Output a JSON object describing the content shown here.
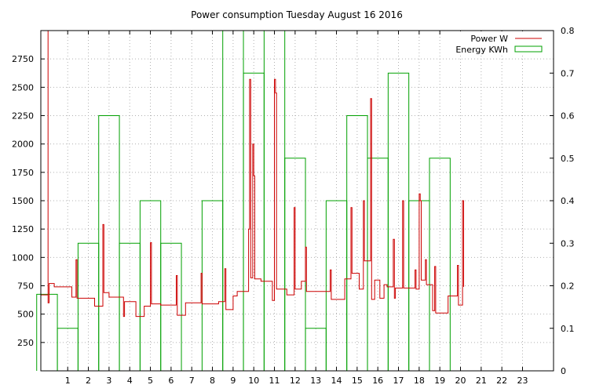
{
  "chart_data": {
    "type": "line",
    "title": "Power consumption Tuesday August 16 2016",
    "xlim": [
      -0.3,
      24.5
    ],
    "x_ticks": [
      1,
      2,
      3,
      4,
      5,
      6,
      7,
      8,
      9,
      10,
      11,
      12,
      13,
      14,
      15,
      16,
      17,
      18,
      19,
      20,
      21,
      22,
      23
    ],
    "y_left": {
      "lim": [
        0,
        3000
      ],
      "ticks": [
        250,
        500,
        750,
        1000,
        1250,
        1500,
        1750,
        2000,
        2250,
        2500,
        2750
      ]
    },
    "y_right": {
      "lim": [
        0,
        0.8
      ],
      "ticks": [
        0,
        0.1,
        0.2,
        0.3,
        0.4,
        0.5,
        0.6,
        0.7,
        0.8
      ]
    },
    "grid": true,
    "legend_position": "top-right",
    "series": [
      {
        "name": "Power W",
        "axis": "left",
        "color": "#cc0000",
        "kind": "line",
        "points": [
          [
            -0.3,
            670
          ],
          [
            0.05,
            670
          ],
          [
            0.05,
            3000
          ],
          [
            0.05,
            600
          ],
          [
            0.1,
            600
          ],
          [
            0.1,
            770
          ],
          [
            0.35,
            770
          ],
          [
            0.35,
            740
          ],
          [
            1.2,
            740
          ],
          [
            1.2,
            650
          ],
          [
            1.4,
            650
          ],
          [
            1.4,
            980
          ],
          [
            1.45,
            980
          ],
          [
            1.45,
            640
          ],
          [
            2.3,
            640
          ],
          [
            2.3,
            570
          ],
          [
            2.7,
            570
          ],
          [
            2.7,
            1290
          ],
          [
            2.75,
            1290
          ],
          [
            2.75,
            690
          ],
          [
            3.0,
            690
          ],
          [
            3.0,
            650
          ],
          [
            3.7,
            650
          ],
          [
            3.7,
            480
          ],
          [
            3.75,
            480
          ],
          [
            3.75,
            610
          ],
          [
            4.3,
            610
          ],
          [
            4.3,
            480
          ],
          [
            4.7,
            480
          ],
          [
            4.7,
            570
          ],
          [
            5.0,
            570
          ],
          [
            5.0,
            1130
          ],
          [
            5.05,
            1130
          ],
          [
            5.05,
            590
          ],
          [
            5.5,
            590
          ],
          [
            5.5,
            580
          ],
          [
            6.25,
            580
          ],
          [
            6.25,
            840
          ],
          [
            6.3,
            840
          ],
          [
            6.3,
            490
          ],
          [
            6.7,
            490
          ],
          [
            6.7,
            600
          ],
          [
            7.45,
            600
          ],
          [
            7.45,
            860
          ],
          [
            7.5,
            860
          ],
          [
            7.5,
            590
          ],
          [
            8.3,
            590
          ],
          [
            8.3,
            610
          ],
          [
            8.6,
            610
          ],
          [
            8.6,
            900
          ],
          [
            8.65,
            900
          ],
          [
            8.65,
            540
          ],
          [
            9.0,
            540
          ],
          [
            9.0,
            660
          ],
          [
            9.2,
            660
          ],
          [
            9.2,
            700
          ],
          [
            9.75,
            700
          ],
          [
            9.75,
            1250
          ],
          [
            9.8,
            1250
          ],
          [
            9.8,
            2570
          ],
          [
            9.85,
            2570
          ],
          [
            9.85,
            820
          ],
          [
            9.95,
            820
          ],
          [
            9.95,
            2000
          ],
          [
            10.0,
            2000
          ],
          [
            10.0,
            1720
          ],
          [
            10.05,
            1720
          ],
          [
            10.05,
            810
          ],
          [
            10.35,
            810
          ],
          [
            10.35,
            790
          ],
          [
            10.9,
            790
          ],
          [
            10.9,
            620
          ],
          [
            11.0,
            620
          ],
          [
            11.0,
            2570
          ],
          [
            11.05,
            2570
          ],
          [
            11.05,
            2450
          ],
          [
            11.1,
            2450
          ],
          [
            11.1,
            720
          ],
          [
            11.6,
            720
          ],
          [
            11.6,
            670
          ],
          [
            11.95,
            670
          ],
          [
            11.95,
            1440
          ],
          [
            12.0,
            1440
          ],
          [
            12.0,
            720
          ],
          [
            12.3,
            720
          ],
          [
            12.3,
            790
          ],
          [
            12.5,
            790
          ],
          [
            12.5,
            1090
          ],
          [
            12.55,
            1090
          ],
          [
            12.55,
            700
          ],
          [
            13.7,
            700
          ],
          [
            13.7,
            890
          ],
          [
            13.75,
            890
          ],
          [
            13.75,
            630
          ],
          [
            14.4,
            630
          ],
          [
            14.4,
            810
          ],
          [
            14.7,
            810
          ],
          [
            14.7,
            1440
          ],
          [
            14.75,
            1440
          ],
          [
            14.75,
            860
          ],
          [
            15.1,
            860
          ],
          [
            15.1,
            720
          ],
          [
            15.3,
            720
          ],
          [
            15.3,
            1500
          ],
          [
            15.35,
            1500
          ],
          [
            15.35,
            970
          ],
          [
            15.65,
            970
          ],
          [
            15.65,
            2400
          ],
          [
            15.7,
            2400
          ],
          [
            15.7,
            630
          ],
          [
            15.85,
            630
          ],
          [
            15.85,
            800
          ],
          [
            16.1,
            800
          ],
          [
            16.1,
            640
          ],
          [
            16.3,
            640
          ],
          [
            16.3,
            760
          ],
          [
            16.45,
            760
          ],
          [
            16.45,
            740
          ],
          [
            16.75,
            740
          ],
          [
            16.75,
            1160
          ],
          [
            16.8,
            1160
          ],
          [
            16.8,
            640
          ],
          [
            16.85,
            640
          ],
          [
            16.85,
            730
          ],
          [
            17.2,
            730
          ],
          [
            17.2,
            1500
          ],
          [
            17.25,
            1500
          ],
          [
            17.25,
            730
          ],
          [
            17.8,
            730
          ],
          [
            17.8,
            890
          ],
          [
            17.85,
            890
          ],
          [
            17.85,
            720
          ],
          [
            18.0,
            720
          ],
          [
            18.0,
            1560
          ],
          [
            18.05,
            1560
          ],
          [
            18.05,
            1500
          ],
          [
            18.1,
            1500
          ],
          [
            18.1,
            800
          ],
          [
            18.3,
            800
          ],
          [
            18.3,
            980
          ],
          [
            18.35,
            980
          ],
          [
            18.35,
            760
          ],
          [
            18.65,
            760
          ],
          [
            18.65,
            530
          ],
          [
            18.75,
            530
          ],
          [
            18.75,
            920
          ],
          [
            18.8,
            920
          ],
          [
            18.8,
            510
          ],
          [
            19.4,
            510
          ],
          [
            19.4,
            660
          ],
          [
            19.85,
            660
          ],
          [
            19.85,
            930
          ],
          [
            19.9,
            930
          ],
          [
            19.9,
            580
          ],
          [
            20.1,
            580
          ],
          [
            20.1,
            1500
          ],
          [
            20.15,
            1500
          ],
          [
            20.15,
            740
          ]
        ]
      },
      {
        "name": "Energy KWh",
        "axis": "right",
        "color": "#00a000",
        "kind": "step-bars",
        "bars": [
          [
            0,
            0.18
          ],
          [
            1,
            0.1
          ],
          [
            2,
            0.3
          ],
          [
            3,
            0.6
          ],
          [
            4,
            0.3
          ],
          [
            5,
            0.4
          ],
          [
            6,
            0.3
          ],
          [
            7,
            0
          ],
          [
            8,
            0.4
          ],
          [
            9,
            0.8
          ],
          [
            10,
            0.7
          ],
          [
            11,
            0.8
          ],
          [
            12,
            0.5
          ],
          [
            13,
            0.1
          ],
          [
            14,
            0.4
          ],
          [
            15,
            0.6
          ],
          [
            16,
            0.5
          ],
          [
            17,
            0.7
          ],
          [
            18,
            0.4
          ],
          [
            19,
            0.5
          ]
        ]
      }
    ]
  }
}
